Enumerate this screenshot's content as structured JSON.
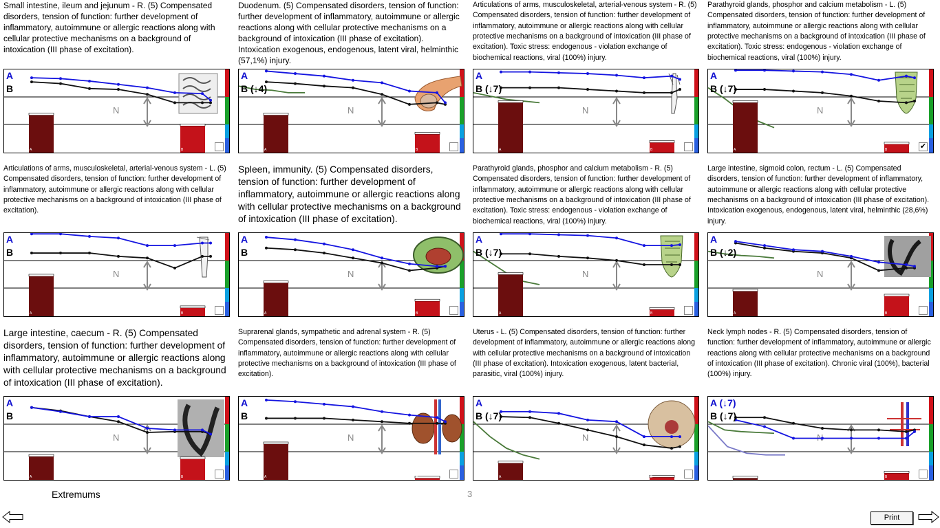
{
  "panels": [
    {
      "desc": "Small intestine, ileum and jejunum - R. (5) Compensated disorders, tension of function: further development of inflammatory, autoimmune or allergic reactions along with cellular protective mechanisms on a background of intoxication (III phase of excitation).",
      "size": "md",
      "a_label": "A",
      "b_label": "B",
      "n_label": "N",
      "bar_a_label": "A",
      "bar_b_label": "B",
      "bar_a": 0.45,
      "bar_b": 0.32,
      "blue": [
        0.1,
        0.11,
        0.14,
        0.18,
        0.22,
        0.28,
        0.29,
        0.37
      ],
      "black": [
        0.15,
        0.17,
        0.23,
        0.24,
        0.3,
        0.4,
        0.4,
        0.4
      ],
      "green": [],
      "purple": [],
      "checked": false,
      "art": "intestine"
    },
    {
      "desc": "Duodenum. (5) Compensated disorders, tension of function: further development of inflammatory, autoimmune or allergic reactions along with cellular protective mechanisms on a background of intoxication (III phase of excitation). Intoxication exogenous, endogenous, latent viral, helminthic (57,1%) injury.",
      "size": "md",
      "a_label": "A",
      "b_label": "B (↓4)",
      "n_label": "N",
      "bar_a_label": "A",
      "bar_b_label": "B",
      "bar_a": 0.45,
      "bar_b": 0.22,
      "blue": [
        0.02,
        0.05,
        0.08,
        0.13,
        0.16,
        0.26,
        0.28,
        0.4
      ],
      "black": [
        0.15,
        0.17,
        0.2,
        0.22,
        0.3,
        0.42,
        0.4,
        0.42
      ],
      "green": [
        0.2,
        0.24,
        0.25,
        0.28,
        0.28
      ],
      "purple": [],
      "checked": false,
      "art": "pancreas"
    },
    {
      "desc": "Articulations of arms, musculoskeletal, arterial-venous system - R. (5) Compensated disorders, tension of function: further development of inflammatory, autoimmune or allergic reactions along with cellular protective mechanisms on a background of intoxication (III phase of excitation). Toxic stress: endogenous - violation exchange of biochemical reactions, viral (100%) injury.",
      "size": "sm",
      "a_label": "A",
      "b_label": "B (↓7)",
      "n_label": "N",
      "bar_a_label": "A",
      "bar_b_label": "B",
      "bar_a": 0.6,
      "bar_b": 0.12,
      "blue": [
        0.03,
        0.03,
        0.04,
        0.05,
        0.07,
        0.1,
        0.08,
        0.12
      ],
      "black": [
        0.22,
        0.22,
        0.22,
        0.24,
        0.26,
        0.28,
        0.28,
        0.24
      ],
      "green": [
        0.28,
        0.32,
        0.36,
        0.38,
        0.4
      ],
      "purple": [],
      "checked": false,
      "art": "arm"
    },
    {
      "desc": "Parathyroid glands,  phosphor and calcium metabolism - L. (5) Compensated disorders, tension of function: further development of inflammatory, autoimmune or allergic reactions along with cellular protective mechanisms on a background of intoxication (III phase of excitation). Toxic stress: endogenous - violation exchange of biochemical reactions, viral (100%) injury.",
      "size": "sm",
      "a_label": "A",
      "b_label": "B (↓7)",
      "n_label": "N",
      "bar_a_label": "A",
      "bar_b_label": "B",
      "bar_a": 0.6,
      "bar_b": 0.1,
      "blue": [
        0.01,
        0.01,
        0.02,
        0.03,
        0.06,
        0.13,
        0.08,
        0.1
      ],
      "black": [
        0.24,
        0.24,
        0.26,
        0.28,
        0.32,
        0.38,
        0.4,
        0.38
      ],
      "green": [
        0.22,
        0.35,
        0.5,
        0.62,
        0.7
      ],
      "purple": [],
      "checked": true,
      "art": "thyroid"
    },
    {
      "desc": "Articulations of arms, musculoskeletal, arterial-venous system - L. (5) Compensated disorders, tension of function: further development of inflammatory, autoimmune or allergic reactions along with cellular protective mechanisms on a background of intoxication (III phase of excitation).",
      "size": "sm2",
      "a_label": "A",
      "b_label": "B",
      "n_label": "N",
      "bar_a_label": "A",
      "bar_b_label": "B",
      "bar_a": 0.48,
      "bar_b": 0.1,
      "blue": [
        0.01,
        0.01,
        0.04,
        0.06,
        0.15,
        0.15,
        0.12,
        0.12
      ],
      "black": [
        0.24,
        0.24,
        0.24,
        0.28,
        0.3,
        0.42,
        0.28,
        0.28
      ],
      "green": [],
      "purple": [],
      "checked": false,
      "art": "arm2"
    },
    {
      "desc": "Spleen, immunity. (5) Compensated disorders, tension of function: further development of inflammatory, autoimmune or allergic reactions along with cellular protective mechanisms on a background of intoxication (III phase of excitation).",
      "size": "lg",
      "a_label": "A",
      "b_label": "B",
      "n_label": "N",
      "bar_a_label": "A",
      "bar_b_label": "B",
      "bar_a": 0.4,
      "bar_b": 0.18,
      "blue": [
        0.05,
        0.08,
        0.13,
        0.2,
        0.3,
        0.37,
        0.4,
        0.4
      ],
      "black": [
        0.18,
        0.2,
        0.24,
        0.3,
        0.36,
        0.45,
        0.42,
        0.4
      ],
      "green": [],
      "purple": [],
      "checked": false,
      "art": "spleen"
    },
    {
      "desc": "Parathyroid glands,  phosphor and calcium metabolism - R. (5) Compensated disorders, tension of function: further development of inflammatory, autoimmune or allergic reactions along with cellular protective mechanisms on a background of intoxication (III phase of excitation). Toxic stress: endogenous - violation exchange of biochemical reactions, viral (100%) injury.",
      "size": "sm",
      "a_label": "A",
      "b_label": "B (↓7)",
      "n_label": "N",
      "bar_a_label": "A",
      "bar_b_label": "B",
      "bar_a": 0.5,
      "bar_b": 0.08,
      "blue": [
        0.01,
        0.01,
        0.02,
        0.03,
        0.06,
        0.15,
        0.15,
        0.14
      ],
      "black": [
        0.25,
        0.25,
        0.28,
        0.3,
        0.33,
        0.38,
        0.38,
        0.38
      ],
      "green": [
        0.22,
        0.35,
        0.48,
        0.58,
        0.62
      ],
      "purple": [],
      "checked": false,
      "art": "thyroid"
    },
    {
      "desc": "Large intestine, sigmoid colon, rectum - L. (5) Compensated disorders, tension of function: further development of inflammatory, autoimmune or allergic reactions along with cellular protective mechanisms on a background of intoxication (III phase of excitation). Intoxication exogenous, endogenous, latent viral, helminthic (28,6%) injury.",
      "size": "sm",
      "a_label": "A",
      "b_label": "B (↓2)",
      "n_label": "N",
      "bar_a_label": "A",
      "bar_b_label": "B",
      "bar_a": 0.3,
      "bar_b": 0.24,
      "blue": [
        0.1,
        0.15,
        0.2,
        0.22,
        0.28,
        0.35,
        0.38,
        0.4
      ],
      "black": [
        0.12,
        0.18,
        0.22,
        0.24,
        0.3,
        0.45,
        0.42,
        0.42
      ],
      "green": [
        0.22,
        0.25,
        0.27,
        0.28,
        0.3
      ],
      "purple": [],
      "checked": false,
      "art": "colon"
    },
    {
      "desc": "Large intestine, caecum - R. (5) Compensated disorders, tension of function: further development of inflammatory, autoimmune or allergic reactions along with cellular protective mechanisms on a background of intoxication (III phase of excitation).",
      "size": "lg",
      "a_label": "A",
      "b_label": "B",
      "n_label": "N",
      "bar_a_label": "A",
      "bar_b_label": "B",
      "bar_a": 0.28,
      "bar_b": 0.25,
      "blue": [
        0.13,
        0.18,
        0.24,
        0.24,
        0.38,
        0.4,
        0.4,
        0.45
      ],
      "black": [
        0.13,
        0.17,
        0.24,
        0.3,
        0.43,
        0.42,
        0.42,
        0.45
      ],
      "green": [],
      "purple": [],
      "checked": false,
      "art": "colon2"
    },
    {
      "desc": "Suprarenal glands, sympathetic and adrenal system - R. (5) Compensated disorders, tension of function: further development of inflammatory, autoimmune or allergic reactions along with cellular protective mechanisms on a background of intoxication (III phase of excitation).",
      "size": "sm2",
      "a_label": "A",
      "b_label": "B",
      "n_label": "N",
      "bar_a_label": "A",
      "bar_b_label": "B",
      "bar_a": 0.43,
      "bar_b": 0.02,
      "blue": [
        0.04,
        0.06,
        0.09,
        0.12,
        0.18,
        0.22,
        0.25,
        0.3
      ],
      "black": [
        0.26,
        0.26,
        0.26,
        0.28,
        0.3,
        0.32,
        0.32,
        0.32
      ],
      "green": [],
      "purple": [],
      "checked": false,
      "art": "kidney"
    },
    {
      "desc": "Uterus - L. (5) Compensated disorders, tension of function: further development of inflammatory, autoimmune or allergic reactions along with cellular protective mechanisms on a background of intoxication (III phase of excitation). Intoxication exogenous, latent bacterial, parasitic, viral (100%) injury.",
      "size": "sm",
      "a_label": "A",
      "b_label": "B (↓7)",
      "n_label": "N",
      "bar_a_label": "A",
      "bar_b_label": "B",
      "bar_a": 0.2,
      "bar_b": 0.03,
      "blue": [
        0.18,
        0.18,
        0.2,
        0.28,
        0.3,
        0.48,
        0.48,
        0.48
      ],
      "black": [
        0.24,
        0.25,
        0.32,
        0.4,
        0.48,
        0.58,
        0.62,
        0.6
      ],
      "green": [
        0.3,
        0.48,
        0.62,
        0.7,
        0.75
      ],
      "purple": [],
      "checked": false,
      "art": "pelvis"
    },
    {
      "desc": "Neck lymph nodes - R. (5) Compensated disorders, tension of function: further development of inflammatory, autoimmune or allergic reactions along with cellular protective mechanisms on a background of intoxication (III phase of excitation). Chronic viral (100%), bacterial (100%) injury.",
      "size": "sm",
      "a_label": "A (↓7)",
      "b_label": "B (↓7)",
      "n_label": "N",
      "bar_a_label": "",
      "bar_b_label": "B",
      "bar_a": 0.02,
      "bar_b": 0.08,
      "blue": [
        0.28,
        0.36,
        0.5,
        0.5,
        0.5,
        0.5,
        0.5,
        0.42
      ],
      "black": [
        0.25,
        0.25,
        0.32,
        0.38,
        0.4,
        0.4,
        0.42,
        0.4
      ],
      "green": [
        0.3,
        0.4,
        0.42,
        0.43,
        0.44
      ],
      "purple": [
        0.35,
        0.6,
        0.68,
        0.7,
        0.7
      ],
      "checked": false,
      "art": "lymph"
    }
  ],
  "footer": {
    "extremums_label": "Extremums",
    "page_number": "3",
    "print_label": "Print"
  },
  "colors": {
    "blue": "#1515e0",
    "black": "#111111",
    "green": "#4a7a3a",
    "bar_dark": "#6b0e0e",
    "bar_red": "#c4121a"
  }
}
